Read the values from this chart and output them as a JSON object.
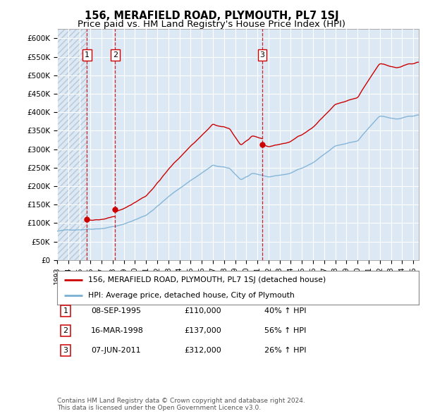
{
  "title": "156, MERAFIELD ROAD, PLYMOUTH, PL7 1SJ",
  "subtitle": "Price paid vs. HM Land Registry's House Price Index (HPI)",
  "hpi_color": "#7bafd4",
  "price_color": "#cc0000",
  "dashed_line_color": "#cc0000",
  "background_color": "#dce9f5",
  "transactions": [
    {
      "date": "1995-09-08",
      "price": 110000,
      "label": "1",
      "x": 1995.69
    },
    {
      "date": "1998-03-16",
      "price": 137000,
      "label": "2",
      "x": 1998.21
    },
    {
      "date": "2011-06-07",
      "price": 312000,
      "label": "3",
      "x": 2011.44
    }
  ],
  "legend_line1": "156, MERAFIELD ROAD, PLYMOUTH, PL7 1SJ (detached house)",
  "legend_line2": "HPI: Average price, detached house, City of Plymouth",
  "table_rows": [
    [
      "1",
      "08-SEP-1995",
      "£110,000",
      "40% ↑ HPI"
    ],
    [
      "2",
      "16-MAR-1998",
      "£137,000",
      "56% ↑ HPI"
    ],
    [
      "3",
      "07-JUN-2011",
      "£312,000",
      "26% ↑ HPI"
    ]
  ],
  "footer": "Contains HM Land Registry data © Crown copyright and database right 2024.\nThis data is licensed under the Open Government Licence v3.0.",
  "xmin": 1993.0,
  "xmax": 2025.5,
  "ylim": [
    0,
    625000
  ],
  "yticks": [
    0,
    50000,
    100000,
    150000,
    200000,
    250000,
    300000,
    350000,
    400000,
    450000,
    500000,
    550000,
    600000
  ],
  "ytick_labels": [
    "£0",
    "£50K",
    "£100K",
    "£150K",
    "£200K",
    "£250K",
    "£300K",
    "£350K",
    "£400K",
    "£450K",
    "£500K",
    "£550K",
    "£600K"
  ]
}
